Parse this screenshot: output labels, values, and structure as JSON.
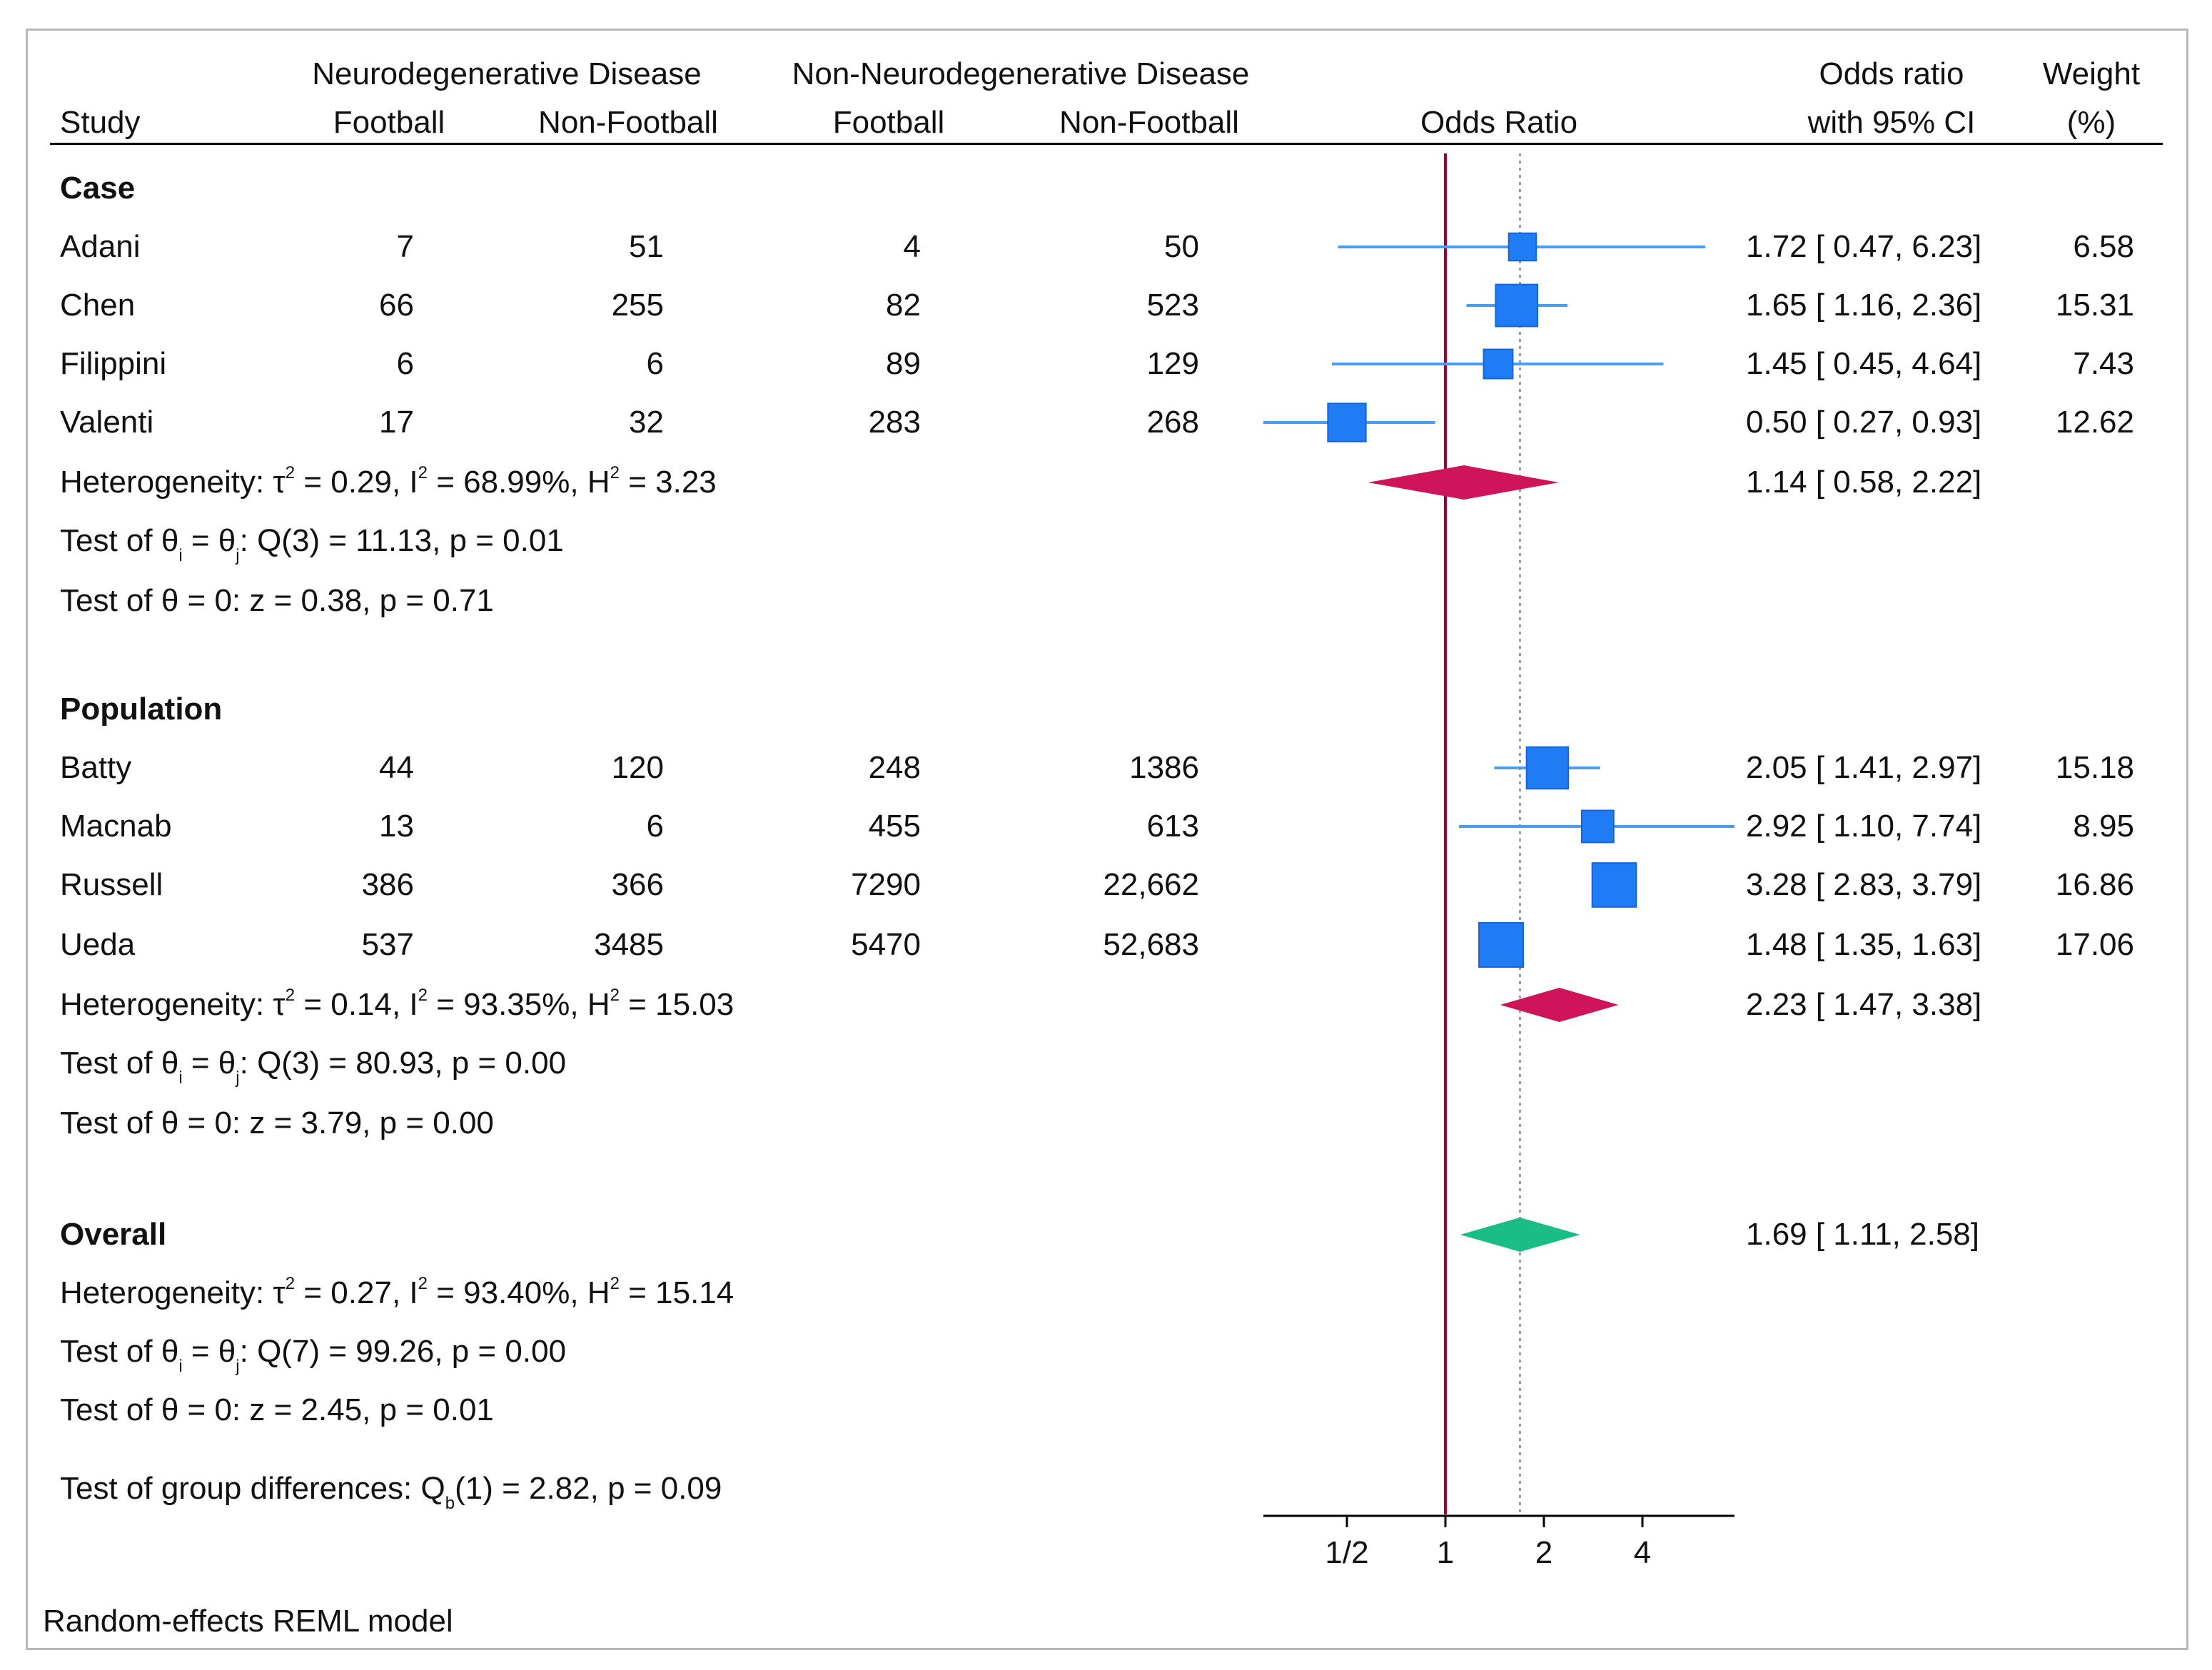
{
  "header": {
    "study": "Study",
    "group1": "Neurodegenerative Disease",
    "group2": "Non-Neurodegenerative Disease",
    "football": "Football",
    "non_football": "Non-Football",
    "odds_ratio_title": "Odds Ratio",
    "ci_line1": "Odds ratio",
    "ci_line2": "with 95% CI",
    "weight_line1": "Weight",
    "weight_line2": "(%)"
  },
  "groups": [
    {
      "name": "Case",
      "studies": [
        {
          "name": "Adani",
          "nd_fb": "7",
          "nd_nfb": "51",
          "nn_fb": "4",
          "nn_nfb": "50",
          "ci_text": "1.72 [ 0.47,  6.23]",
          "weight": "6.58"
        },
        {
          "name": "Chen",
          "nd_fb": "66",
          "nd_nfb": "255",
          "nn_fb": "82",
          "nn_nfb": "523",
          "ci_text": "1.65 [ 1.16,  2.36]",
          "weight": "15.31"
        },
        {
          "name": "Filippini",
          "nd_fb": "6",
          "nd_nfb": "6",
          "nn_fb": "89",
          "nn_nfb": "129",
          "ci_text": "1.45 [ 0.45,  4.64]",
          "weight": "7.43"
        },
        {
          "name": "Valenti",
          "nd_fb": "17",
          "nd_nfb": "32",
          "nn_fb": "283",
          "nn_nfb": "268",
          "ci_text": "0.50 [ 0.27,  0.93]",
          "weight": "12.62"
        }
      ],
      "het": {
        "tau2": "0.29",
        "i2": "68.99%",
        "h2": "3.23"
      },
      "summary_ci": "1.14 [ 0.58,  2.22]",
      "q": {
        "df": "3",
        "value": "11.13",
        "p": "0.01"
      },
      "z": {
        "value": "0.38",
        "p": "0.71"
      }
    },
    {
      "name": "Population",
      "studies": [
        {
          "name": "Batty",
          "nd_fb": "44",
          "nd_nfb": "120",
          "nn_fb": "248",
          "nn_nfb": "1386",
          "ci_text": "2.05 [ 1.41,  2.97]",
          "weight": "15.18"
        },
        {
          "name": "Macnab",
          "nd_fb": "13",
          "nd_nfb": "6",
          "nn_fb": "455",
          "nn_nfb": "613",
          "ci_text": "2.92 [ 1.10,  7.74]",
          "weight": "8.95"
        },
        {
          "name": "Russell",
          "nd_fb": "386",
          "nd_nfb": "366",
          "nn_fb": "7290",
          "nn_nfb": "22,662",
          "ci_text": "3.28 [ 2.83,  3.79]",
          "weight": "16.86"
        },
        {
          "name": "Ueda",
          "nd_fb": "537",
          "nd_nfb": "3485",
          "nn_fb": "5470",
          "nn_nfb": "52,683",
          "ci_text": "1.48 [ 1.35,  1.63]",
          "weight": "17.06"
        }
      ],
      "het": {
        "tau2": "0.14",
        "i2": "93.35%",
        "h2": "15.03"
      },
      "summary_ci": "2.23 [ 1.47,  3.38]",
      "q": {
        "df": "3",
        "value": "80.93",
        "p": "0.00"
      },
      "z": {
        "value": "3.79",
        "p": "0.00"
      }
    }
  ],
  "overall": {
    "label": "Overall",
    "summary_ci": "1.69 [ 1.11,  2.58]",
    "het": {
      "tau2": "0.27",
      "i2": "93.40%",
      "h2": "15.14"
    },
    "q": {
      "df": "7",
      "value": "99.26",
      "p": "0.00"
    },
    "z": {
      "value": "2.45",
      "p": "0.01"
    },
    "group_diff": {
      "df": "1",
      "value": "2.82",
      "p": "0.09"
    }
  },
  "footer": "Random-effects REML model",
  "chart_data": {
    "type": "forest",
    "title": "Odds Ratio",
    "xscale": "log",
    "xlim": [
      0.3,
      7.1
    ],
    "ticks": [
      {
        "value": 0.5,
        "label": "1/2"
      },
      {
        "value": 1,
        "label": "1"
      },
      {
        "value": 2,
        "label": "2"
      },
      {
        "value": 4,
        "label": "4"
      }
    ],
    "null_line": 1,
    "overall_line": 1.69,
    "studies": [
      {
        "group": "Case",
        "name": "Adani",
        "or": 1.72,
        "lo": 0.47,
        "hi": 6.23,
        "weight": 6.58
      },
      {
        "group": "Case",
        "name": "Chen",
        "or": 1.65,
        "lo": 1.16,
        "hi": 2.36,
        "weight": 15.31
      },
      {
        "group": "Case",
        "name": "Filippini",
        "or": 1.45,
        "lo": 0.45,
        "hi": 4.64,
        "weight": 7.43
      },
      {
        "group": "Case",
        "name": "Valenti",
        "or": 0.5,
        "lo": 0.27,
        "hi": 0.93,
        "weight": 12.62
      },
      {
        "group": "Population",
        "name": "Batty",
        "or": 2.05,
        "lo": 1.41,
        "hi": 2.97,
        "weight": 15.18
      },
      {
        "group": "Population",
        "name": "Macnab",
        "or": 2.92,
        "lo": 1.1,
        "hi": 7.74,
        "weight": 8.95
      },
      {
        "group": "Population",
        "name": "Russell",
        "or": 3.28,
        "lo": 2.83,
        "hi": 3.79,
        "weight": 16.86
      },
      {
        "group": "Population",
        "name": "Ueda",
        "or": 1.48,
        "lo": 1.35,
        "hi": 1.63,
        "weight": 17.06
      }
    ],
    "summaries": [
      {
        "name": "Case",
        "or": 1.14,
        "lo": 0.58,
        "hi": 2.22
      },
      {
        "name": "Population",
        "or": 2.23,
        "lo": 1.47,
        "hi": 3.38
      },
      {
        "name": "Overall",
        "or": 1.69,
        "lo": 1.11,
        "hi": 2.58
      }
    ],
    "colors": {
      "study": "#1f7cf5",
      "ci_line": "#4a9cf0",
      "subgroup_diamond": "#d0145a",
      "overall_diamond": "#19bd85",
      "null_line": "#a0003a",
      "overall_line": "#999999"
    }
  }
}
